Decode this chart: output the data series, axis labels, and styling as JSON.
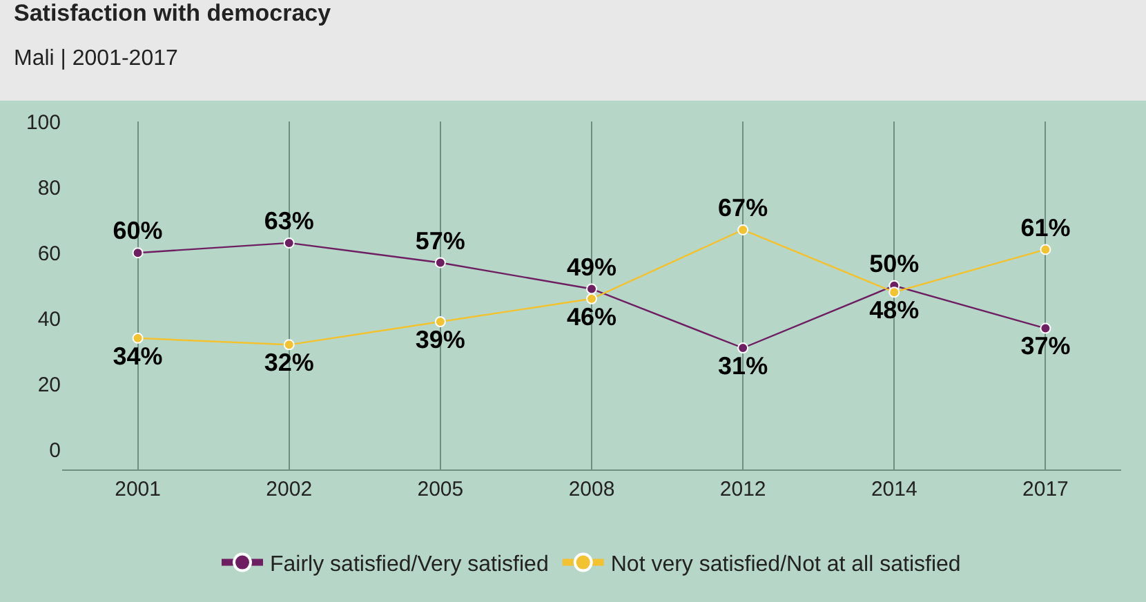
{
  "chart_data": {
    "type": "line",
    "title": "Satisfaction with democracy",
    "subtitle": "Mali | 2001-2017",
    "categories": [
      "2001",
      "2002",
      "2005",
      "2008",
      "2012",
      "2014",
      "2017"
    ],
    "series": [
      {
        "name": "Fairly satisfied/Very satisfied",
        "color": "#6e1f62",
        "values": [
          60,
          63,
          57,
          49,
          31,
          50,
          37
        ],
        "value_labels": [
          "60%",
          "63%",
          "57%",
          "49%",
          "31%",
          "50%",
          "37%"
        ]
      },
      {
        "name": "Not very satisfied/Not at all satisfied",
        "color": "#f2c230",
        "values": [
          34,
          32,
          39,
          46,
          67,
          48,
          61
        ],
        "value_labels": [
          "34%",
          "32%",
          "39%",
          "46%",
          "67%",
          "48%",
          "61%"
        ]
      }
    ],
    "ylim": [
      -6,
      100
    ],
    "yticks": [
      0,
      20,
      40,
      60,
      80,
      100
    ],
    "grid": "x",
    "legend": "bottom",
    "marker": "circle",
    "line_style": "solid"
  }
}
